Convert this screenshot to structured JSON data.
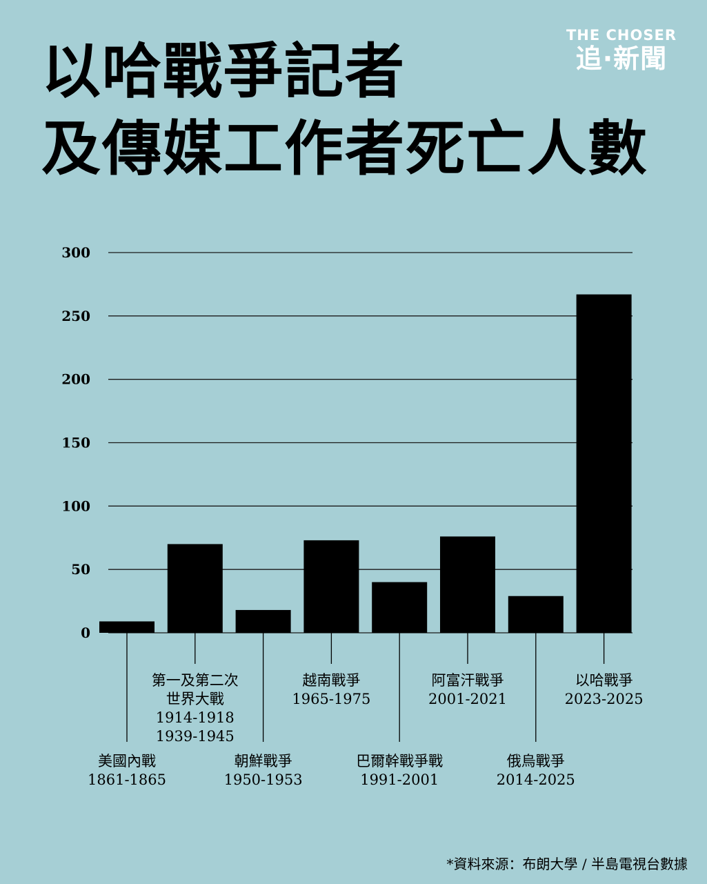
{
  "title_lines": [
    "以哈戰爭記者",
    "及傳媒工作者死亡人數"
  ],
  "brand": {
    "en": "THE CHOSER",
    "zh": "追·新聞"
  },
  "source": "*資料來源：布朗大學 / 半島電視台數據",
  "colors": {
    "background": "#a6cfd5",
    "bar": "#000000",
    "grid": "#1a1a1a",
    "brand": "#ffffff"
  },
  "chart_data": {
    "type": "bar",
    "categories": [
      {
        "lines": [
          "美國內戰",
          "1861-1865"
        ]
      },
      {
        "lines": [
          "第一及第二次",
          "世界大戰",
          "1914-1918",
          "1939-1945"
        ]
      },
      {
        "lines": [
          "朝鮮戰爭",
          "1950-1953"
        ]
      },
      {
        "lines": [
          "越南戰爭",
          "1965-1975"
        ]
      },
      {
        "lines": [
          "巴爾幹戰爭戰",
          "1991-2001"
        ]
      },
      {
        "lines": [
          "阿富汗戰爭",
          "2001-2021"
        ]
      },
      {
        "lines": [
          "俄烏戰爭",
          "2014-2025"
        ]
      },
      {
        "lines": [
          "以哈戰爭",
          "2023-2025"
        ]
      }
    ],
    "values": [
      9,
      70,
      18,
      73,
      40,
      76,
      29,
      267
    ],
    "ylim": [
      0,
      300
    ],
    "yticks": [
      "0",
      "50",
      "100",
      "150",
      "200",
      "250",
      "300"
    ],
    "grid": true
  }
}
